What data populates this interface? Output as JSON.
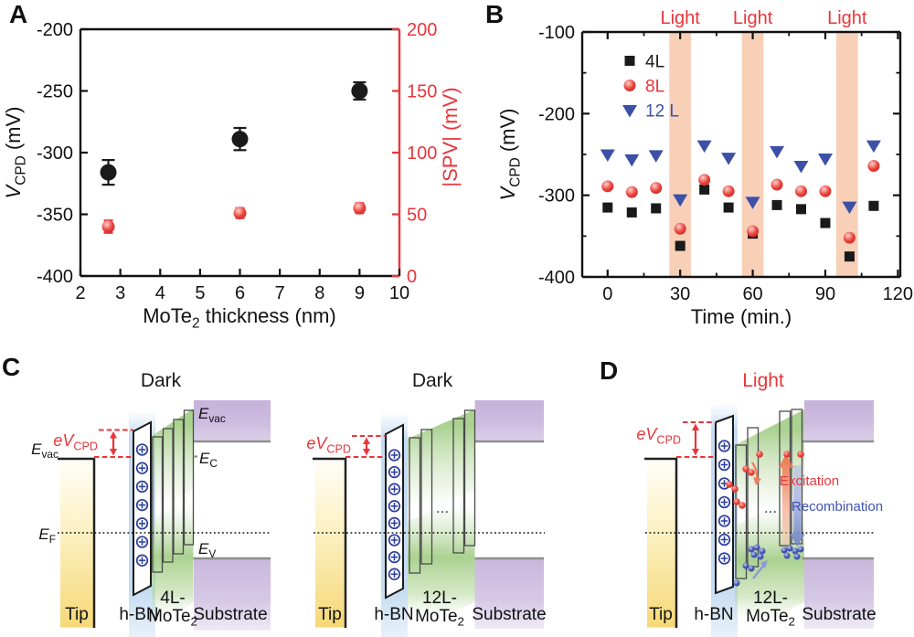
{
  "figure": {
    "panels": {
      "a": "A",
      "b": "B",
      "c": "C",
      "d": "D"
    }
  },
  "colors": {
    "black": "#1a1a1a",
    "red": "#e8363b",
    "blue": "#3c50a8",
    "charge_blue": "#2b3d9e",
    "band_peach": "#f8d0b8",
    "green": "#a5cf8a",
    "purple": "#cbb9de",
    "hbn_blue": "#bdd7f0",
    "tip_yellow": "#f6d878",
    "gray_line": "#8f8f8f"
  },
  "chart_data": [
    {
      "type": "scatter",
      "panel": "A",
      "xlabel_parts": [
        {
          "t": "MoTe"
        },
        {
          "t": "2",
          "sub": true
        },
        {
          "t": " thickness (nm)"
        }
      ],
      "ylabel_parts": [
        {
          "t": "V",
          "i": true
        },
        {
          "t": "CPD",
          "sub": true
        },
        {
          "t": " (mV)"
        }
      ],
      "y2label_parts": [
        {
          "t": "|SPV| (mV)"
        }
      ],
      "xlim": [
        2,
        10
      ],
      "xticks": [
        2,
        3,
        4,
        5,
        6,
        7,
        8,
        9,
        10
      ],
      "ylim": [
        -400,
        -200
      ],
      "yticks": [
        -200,
        -250,
        -300,
        -350,
        -400
      ],
      "y2lim": [
        0,
        200
      ],
      "y2ticks": [
        200,
        150,
        100,
        50,
        0
      ],
      "grid": false,
      "series": [
        {
          "name": "VCPD",
          "axis": "left",
          "marker": "circle",
          "color": "#1a1a1a",
          "points": [
            [
              2.7,
              -316,
              10
            ],
            [
              6,
              -289,
              9
            ],
            [
              9,
              -250,
              7
            ]
          ]
        },
        {
          "name": "SPV",
          "axis": "right",
          "marker": "circle",
          "color": "#e8363b",
          "points": [
            [
              2.7,
              40,
              5
            ],
            [
              6,
              51,
              4
            ],
            [
              9,
              55,
              4
            ]
          ]
        }
      ]
    },
    {
      "type": "scatter",
      "panel": "B",
      "xlabel": "Time (min.)",
      "ylabel_parts": [
        {
          "t": "V",
          "i": true
        },
        {
          "t": "CPD",
          "sub": true
        },
        {
          "t": " (mV)"
        }
      ],
      "xlim": [
        -10.5,
        121
      ],
      "xticks": [
        0,
        30,
        60,
        90,
        120
      ],
      "xminor": [
        15,
        45,
        75,
        105
      ],
      "ylim": [
        -400,
        -100
      ],
      "yticks": [
        -100,
        -200,
        -300,
        -400
      ],
      "yminor": [
        -150,
        -250,
        -350
      ],
      "grid": false,
      "legend_position": "top-left",
      "light_bands": {
        "label": "Light",
        "color": "#f8d0b8",
        "label_color": "#e8363b",
        "ranges": [
          [
            25.5,
            34.5
          ],
          [
            55.5,
            64.5
          ],
          [
            94.5,
            103.5
          ]
        ]
      },
      "x": [
        0,
        10,
        20,
        30,
        40,
        50,
        60,
        70,
        80,
        90,
        100,
        110
      ],
      "series": [
        {
          "name": "4L",
          "marker": "square",
          "color": "#1a1a1a",
          "values": [
            -315,
            -321,
            -316,
            -362,
            -293,
            -315,
            -347,
            -312,
            -317,
            -334,
            -375,
            -313
          ]
        },
        {
          "name": "8L",
          "marker": "circle",
          "color": "#e8363b",
          "values": [
            -289,
            -296,
            -291,
            -341,
            -281,
            -295,
            -344,
            -287,
            -295,
            -295,
            -352,
            -264
          ]
        },
        {
          "name": "12 L",
          "marker": "triangle-down",
          "color": "#3c50a8",
          "values": [
            -250,
            -256,
            -251,
            -305,
            -239,
            -254,
            -308,
            -246,
            -264,
            -255,
            -314,
            -239
          ]
        }
      ]
    }
  ],
  "diagrams": {
    "c_left": {
      "title": "Dark",
      "tip": "Tip",
      "hbn": "h-BN",
      "material_top": "4L-",
      "material": {
        "base": "MoTe",
        "sub": "2"
      },
      "substrate": "Substrate",
      "ev_cpd": {
        "base": "eV",
        "sub": "CPD"
      },
      "e_vac_tip": {
        "base": "E",
        "sub": "vac"
      },
      "e_f": {
        "base": "E",
        "sub": "F"
      },
      "e_vac": {
        "base": "E",
        "sub": "vac"
      },
      "e_c": {
        "base": "E",
        "sub": "C"
      },
      "e_v": {
        "base": "E",
        "sub": "V"
      },
      "charge_symbol": "plus-in-circle",
      "charge_count": 7
    },
    "c_right": {
      "title": "Dark",
      "tip": "Tip",
      "hbn": "h-BN",
      "material_top": "12L-",
      "material": {
        "base": "MoTe",
        "sub": "2"
      },
      "substrate": "Substrate",
      "ev_cpd": {
        "base": "eV",
        "sub": "CPD"
      },
      "ellipsis": "...",
      "charge_symbol": "plus-in-circle",
      "charge_count": 8
    },
    "d": {
      "title": "Light",
      "tip": "Tip",
      "hbn": "h-BN",
      "material_top": "12L-",
      "material": {
        "base": "MoTe",
        "sub": "2"
      },
      "substrate": "Substrate",
      "ev_cpd": {
        "base": "eV",
        "sub": "CPD"
      },
      "ellipsis": "...",
      "excitation": "Excitation",
      "recombination": "Recombination",
      "charge_symbol": "plus-in-circle",
      "charge_count": 7
    }
  }
}
